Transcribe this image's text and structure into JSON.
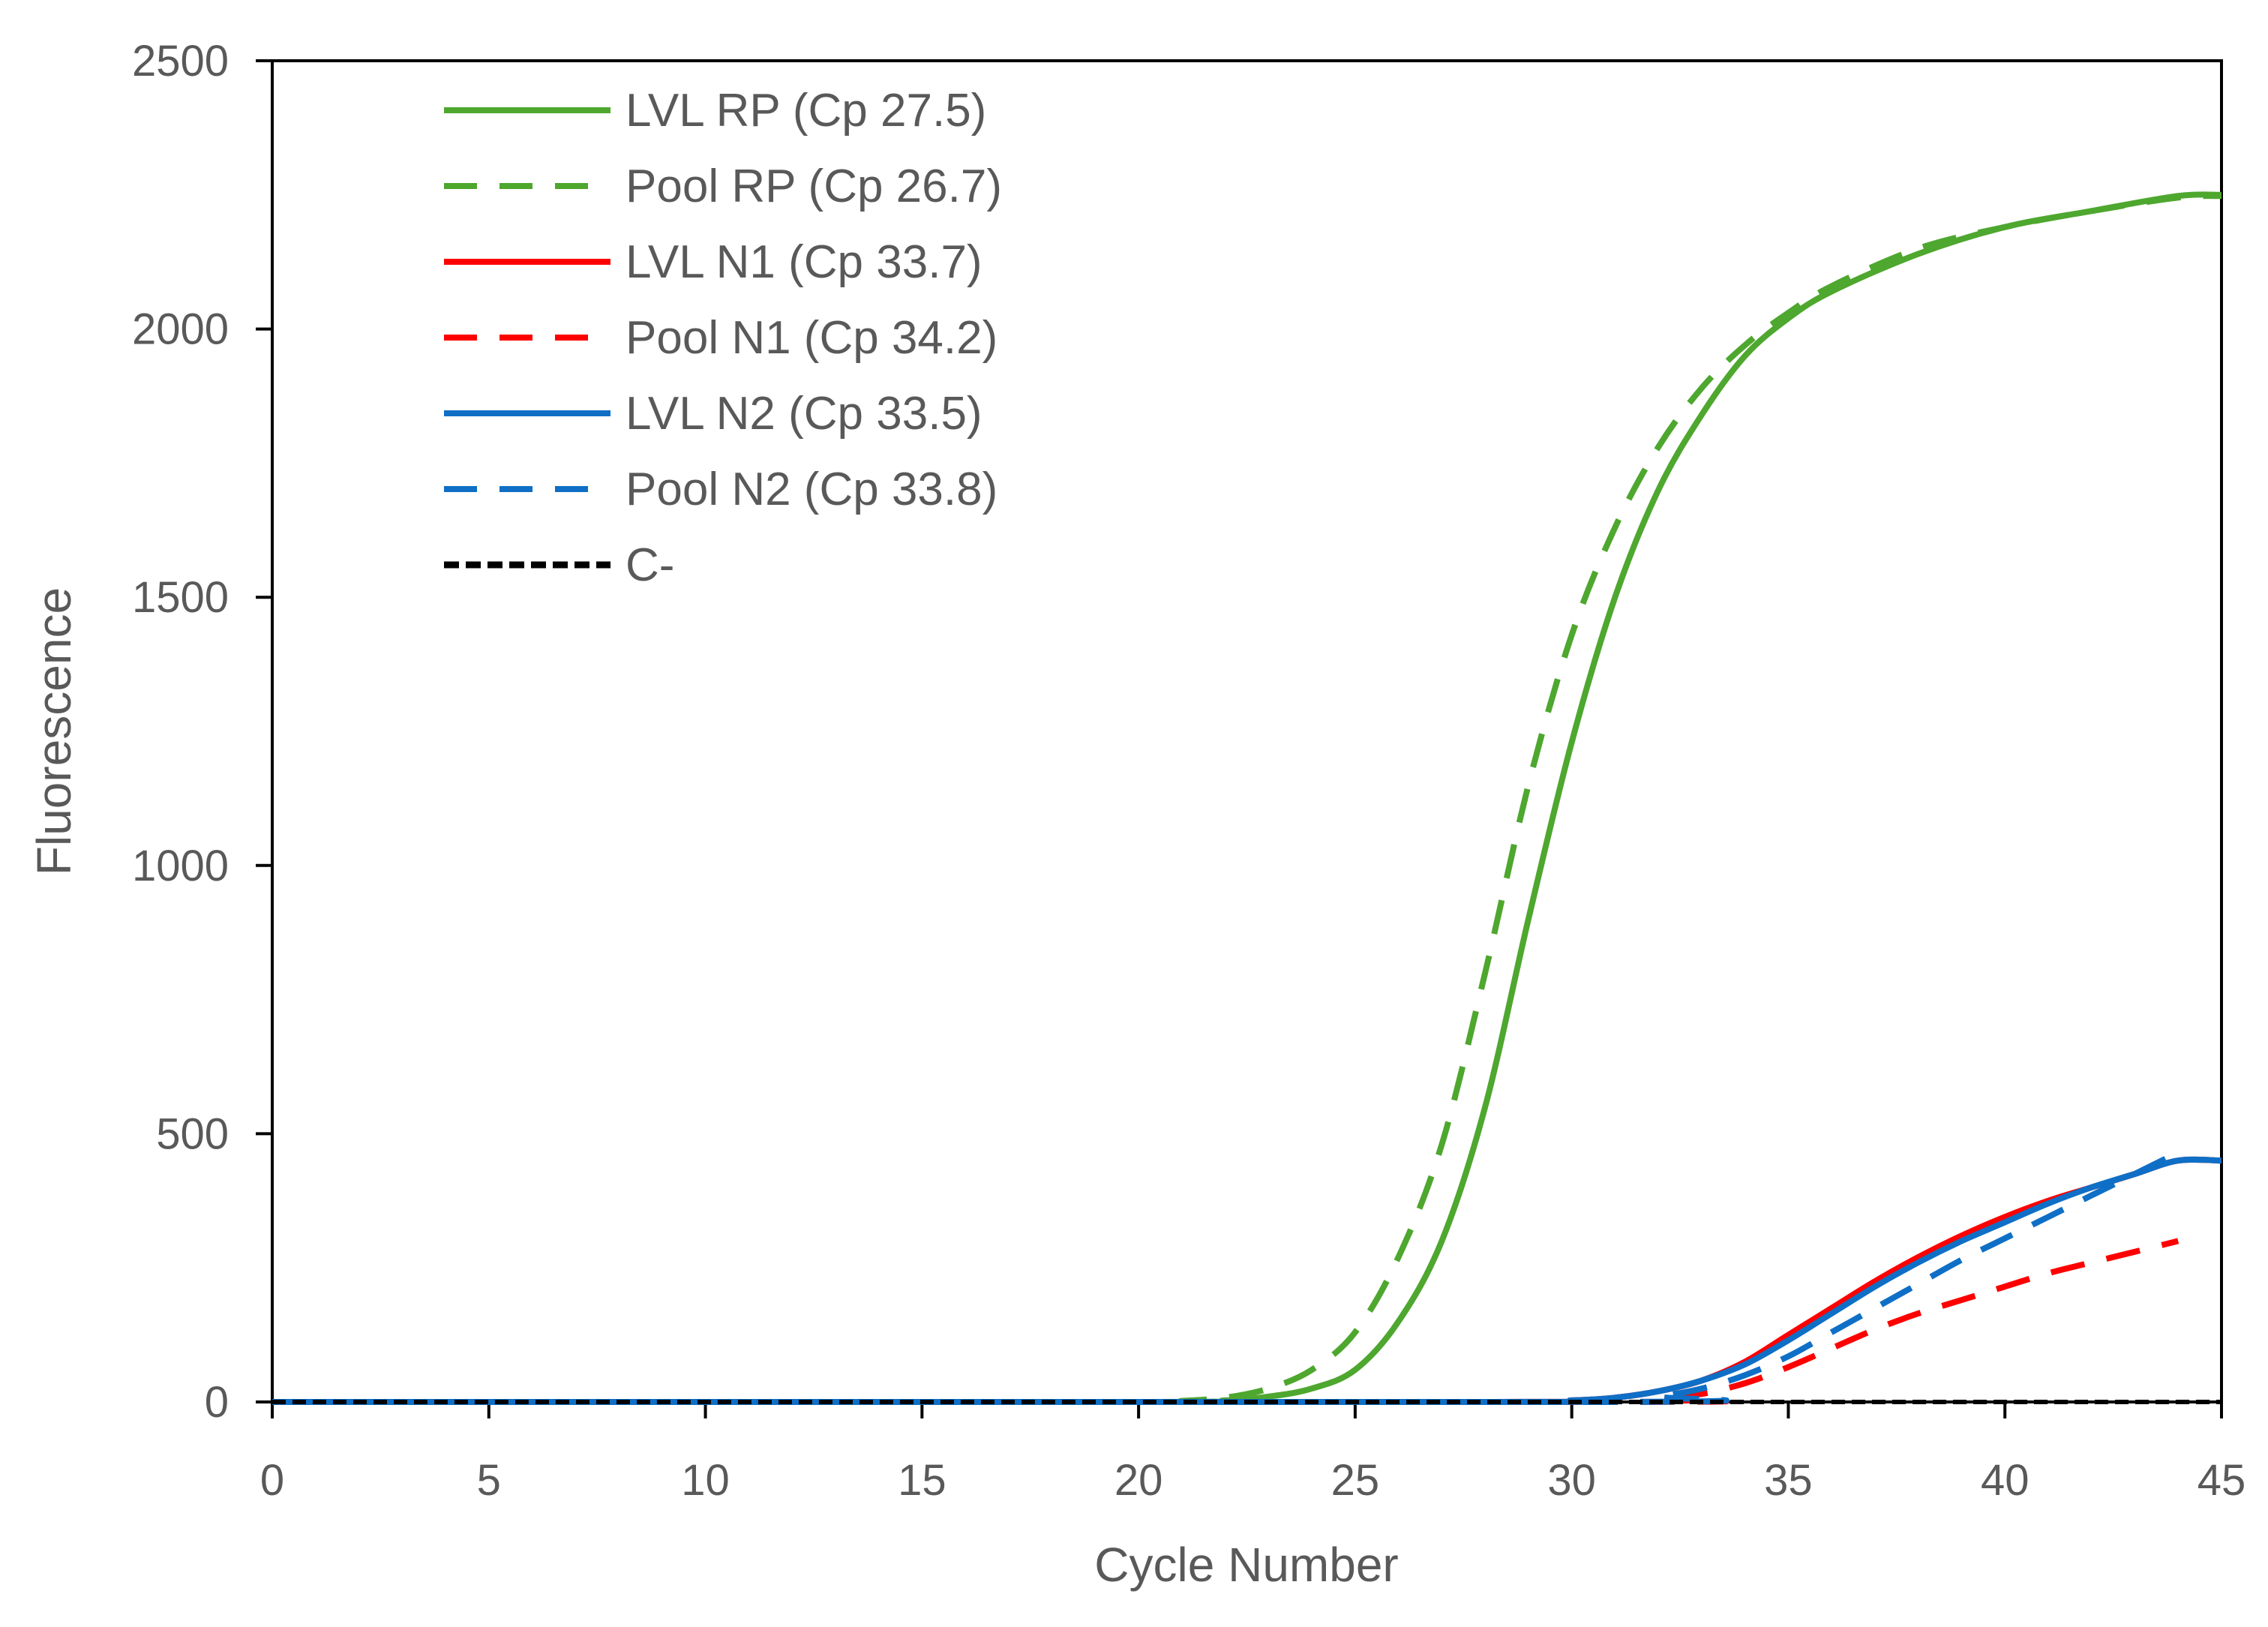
{
  "chart_data": {
    "type": "line",
    "title": "",
    "xlabel": "Cycle Number",
    "ylabel": "Fluorescence",
    "xlim": [
      0,
      45
    ],
    "ylim": [
      0,
      2500
    ],
    "xticks": [
      0,
      5,
      10,
      15,
      20,
      25,
      30,
      35,
      40,
      45
    ],
    "yticks": [
      0,
      500,
      1000,
      1500,
      2000,
      2500
    ],
    "grid": false,
    "legend_position": "top-left",
    "series": [
      {
        "name": "LVL RP (Cp 27.5)",
        "color": "#4ea72e",
        "style": "solid",
        "x": [
          0,
          20,
          22,
          23,
          24,
          25,
          26,
          27,
          28,
          29,
          30,
          31,
          32,
          33,
          34,
          35,
          36,
          38,
          40,
          42,
          44,
          45
        ],
        "y": [
          0,
          0,
          3,
          10,
          25,
          60,
          150,
          300,
          550,
          900,
          1230,
          1500,
          1700,
          1840,
          1950,
          2020,
          2070,
          2140,
          2190,
          2220,
          2248,
          2250
        ]
      },
      {
        "name": "Pool RP (Cp 26.7)",
        "color": "#4ea72e",
        "style": "dashed",
        "x": [
          0,
          20,
          21,
          22,
          23,
          24,
          25,
          26,
          27,
          28,
          29,
          30,
          31,
          32,
          33,
          34,
          35,
          36,
          38,
          40,
          42,
          44,
          45
        ],
        "y": [
          0,
          0,
          2,
          8,
          25,
          60,
          130,
          270,
          480,
          800,
          1150,
          1430,
          1630,
          1780,
          1890,
          1970,
          2030,
          2080,
          2150,
          2190,
          2220,
          2245,
          2248
        ]
      },
      {
        "name": "LVL N1 (Cp 33.7)",
        "color": "#ff0000",
        "style": "solid",
        "x": [
          0,
          28,
          30,
          31,
          32,
          33,
          34,
          35,
          36,
          37,
          38,
          39,
          40,
          41,
          42,
          43,
          44,
          45
        ],
        "y": [
          0,
          0,
          3,
          8,
          20,
          40,
          75,
          125,
          175,
          225,
          270,
          310,
          345,
          375,
          400,
          425,
          450,
          450
        ]
      },
      {
        "name": "Pool N1 (Cp 34.2)",
        "color": "#ff0000",
        "style": "dashed",
        "x": [
          0,
          31,
          32,
          33,
          34,
          35,
          36,
          37,
          38,
          39,
          40,
          41,
          42,
          43,
          44
        ],
        "y": [
          0,
          0,
          5,
          15,
          35,
          65,
          100,
          135,
          165,
          190,
          215,
          240,
          260,
          280,
          300
        ]
      },
      {
        "name": "LVL N2 (Cp 33.5)",
        "color": "#0f6fc6",
        "style": "solid",
        "x": [
          0,
          28,
          30,
          31,
          32,
          33,
          34,
          35,
          36,
          37,
          38,
          39,
          40,
          41,
          42,
          43,
          44,
          45
        ],
        "y": [
          0,
          0,
          3,
          8,
          20,
          40,
          70,
          115,
          165,
          215,
          260,
          300,
          335,
          370,
          400,
          425,
          450,
          450
        ]
      },
      {
        "name": "Pool N2 (Cp 33.8)",
        "color": "#0f6fc6",
        "style": "dashed",
        "x": [
          0,
          31,
          32,
          33,
          34,
          35,
          36,
          37,
          38,
          39,
          40,
          41,
          42,
          43,
          44
        ],
        "y": [
          0,
          0,
          10,
          25,
          50,
          85,
          130,
          175,
          220,
          265,
          305,
          345,
          385,
          425,
          465
        ]
      },
      {
        "name": "C-",
        "color": "#000000",
        "style": "dotted",
        "x": [
          0,
          45
        ],
        "y": [
          0,
          0
        ]
      }
    ]
  }
}
